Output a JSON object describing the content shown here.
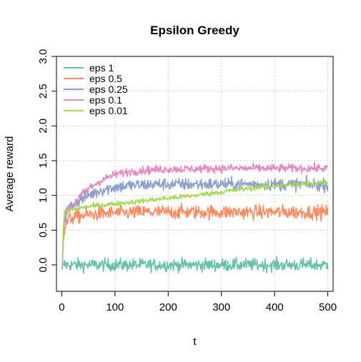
{
  "chart_data": {
    "type": "line",
    "title": "Epsilon Greedy",
    "xlabel": "t",
    "ylabel": "Average reward",
    "xlim": [
      -10,
      510
    ],
    "ylim": [
      -0.38,
      3.0
    ],
    "xticks": [
      0,
      100,
      200,
      300,
      400,
      500
    ],
    "xtick_labels": [
      "0",
      "100",
      "200",
      "300",
      "400",
      "500"
    ],
    "yticks": [
      0.0,
      0.5,
      1.0,
      1.5,
      2.0,
      2.5,
      3.0
    ],
    "ytick_labels": [
      "0.0",
      "0.5",
      "1.0",
      "1.5",
      "2.0",
      "2.5",
      "3.0"
    ],
    "grid": true,
    "legend_position": "top-left",
    "x": [
      1,
      3,
      5,
      8,
      12,
      20,
      30,
      50,
      75,
      100,
      125,
      150,
      175,
      200,
      250,
      300,
      350,
      400,
      450,
      500
    ],
    "series": [
      {
        "name": "eps 1",
        "color": "#66c2a5",
        "noise": 0.045,
        "values": [
          -0.02,
          0.0,
          0.01,
          0.0,
          0.0,
          0.0,
          0.0,
          0.0,
          0.0,
          0.0,
          0.0,
          0.0,
          0.0,
          0.0,
          0.0,
          0.0,
          0.0,
          0.0,
          0.0,
          0.0
        ]
      },
      {
        "name": "eps 0.5",
        "color": "#fc8d62",
        "noise": 0.05,
        "values": [
          0.1,
          0.35,
          0.5,
          0.6,
          0.65,
          0.68,
          0.7,
          0.72,
          0.74,
          0.75,
          0.75,
          0.76,
          0.76,
          0.76,
          0.76,
          0.76,
          0.76,
          0.76,
          0.76,
          0.76
        ]
      },
      {
        "name": "eps 0.25",
        "color": "#8da0cb",
        "noise": 0.045,
        "values": [
          -0.08,
          0.45,
          0.65,
          0.75,
          0.8,
          0.86,
          0.92,
          1.0,
          1.08,
          1.12,
          1.14,
          1.15,
          1.16,
          1.16,
          1.16,
          1.16,
          1.16,
          1.16,
          1.16,
          1.15
        ]
      },
      {
        "name": "eps 0.1",
        "color": "#e78ac3",
        "noise": 0.03,
        "values": [
          0.05,
          0.45,
          0.68,
          0.76,
          0.8,
          0.86,
          0.95,
          1.1,
          1.22,
          1.3,
          1.34,
          1.36,
          1.37,
          1.38,
          1.38,
          1.39,
          1.39,
          1.39,
          1.39,
          1.39
        ]
      },
      {
        "name": "eps 0.01",
        "color": "#a6d854",
        "noise": 0.018,
        "values": [
          0.05,
          0.55,
          0.72,
          0.76,
          0.78,
          0.8,
          0.81,
          0.84,
          0.86,
          0.88,
          0.9,
          0.92,
          0.94,
          0.96,
          1.0,
          1.05,
          1.1,
          1.14,
          1.16,
          1.19
        ]
      }
    ]
  }
}
